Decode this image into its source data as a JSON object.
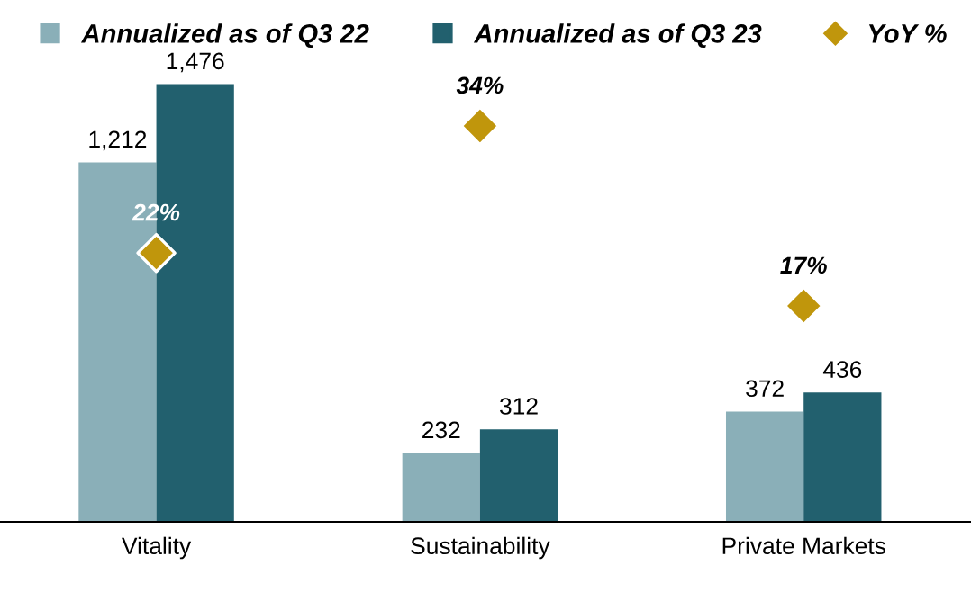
{
  "chart_data": {
    "type": "bar",
    "categories": [
      "Vitality",
      "Sustainability",
      "Private Markets"
    ],
    "series": [
      {
        "name": "Annualized as of Q3 22",
        "color": "#8aafb8",
        "values": [
          1212,
          232,
          372
        ],
        "value_labels": [
          "1,212",
          "232",
          "372"
        ]
      },
      {
        "name": "Annualized as of Q3 23",
        "color": "#22606e",
        "values": [
          1476,
          312,
          436
        ],
        "value_labels": [
          "1,476",
          "312",
          "436"
        ]
      },
      {
        "name": "YoY %",
        "color": "#c0960c",
        "type": "scatter",
        "axis": "y2",
        "marker": "diamond",
        "values": [
          22,
          34,
          17
        ],
        "value_labels": [
          "22%",
          "34%",
          "17%"
        ]
      }
    ],
    "legend": "top"
  }
}
